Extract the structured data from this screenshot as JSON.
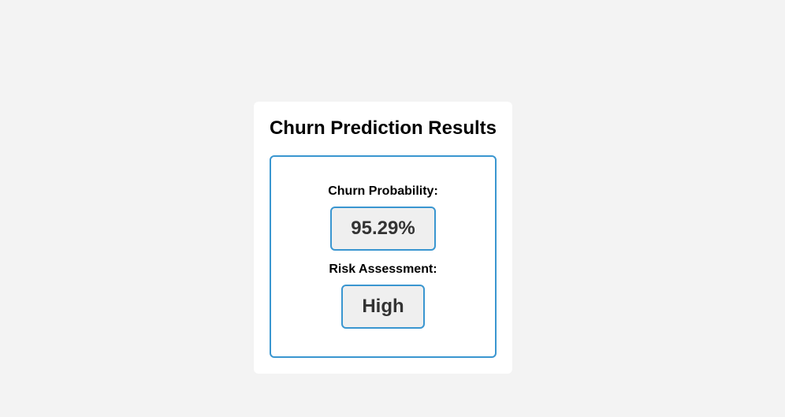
{
  "card": {
    "title": "Churn Prediction Results"
  },
  "results": {
    "probability_label": "Churn Probability:",
    "probability_value": "95.29%",
    "risk_label": "Risk Assessment:",
    "risk_value": "High"
  },
  "colors": {
    "accent": "#3a96d0",
    "page_background": "#f3f3f3",
    "card_background": "#ffffff",
    "value_background": "#efefef"
  }
}
